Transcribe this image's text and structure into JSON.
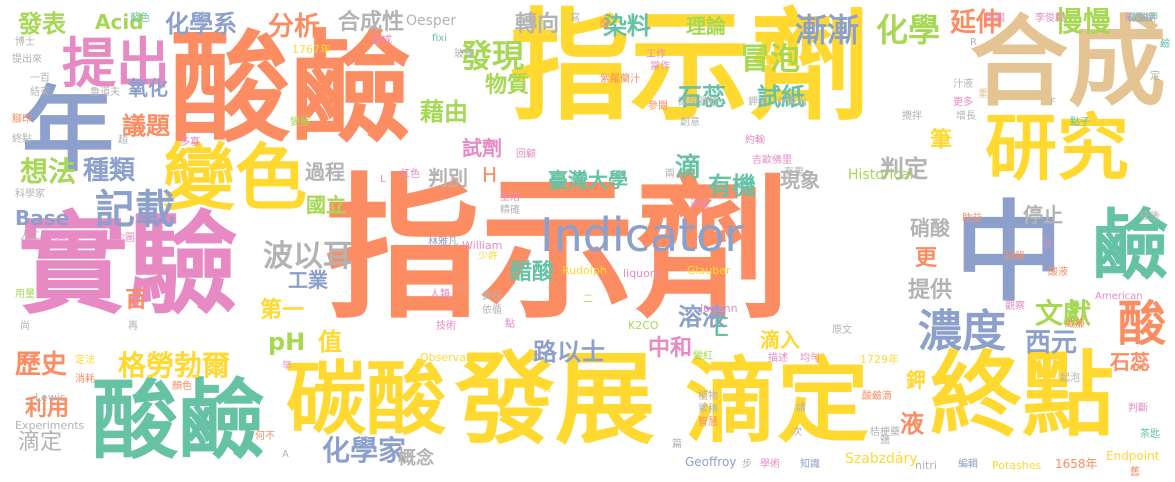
{
  "words": [
    {
      "text": "指示劑",
      "color": "#fc8d62"
    },
    {
      "text": "指示劑",
      "color": "#ffd92f"
    },
    {
      "text": "酸鹼",
      "color": "#fc8d62"
    },
    {
      "text": "實驗",
      "color": "#e78ac3"
    },
    {
      "text": "合成",
      "color": "#e5c494"
    },
    {
      "text": "發展",
      "color": "#ffd92f"
    },
    {
      "text": "滴定",
      "color": "#ffd92f"
    },
    {
      "text": "終點",
      "color": "#ffd92f"
    },
    {
      "text": "中",
      "color": "#8da0cb"
    },
    {
      "text": "碳酸",
      "color": "#ffd92f"
    },
    {
      "text": "酸鹼",
      "color": "#66c2a5"
    },
    {
      "text": "年",
      "color": "#8da0cb"
    },
    {
      "text": "研究",
      "color": "#ffd92f"
    },
    {
      "text": "變色",
      "color": "#ffd92f"
    },
    {
      "text": "提出",
      "color": "#e78ac3"
    },
    {
      "text": "鹼",
      "color": "#66c2a5"
    },
    {
      "text": "Indicator",
      "color": "#8da0cb"
    },
    {
      "text": "濃度",
      "color": "#8da0cb"
    },
    {
      "text": "記載",
      "color": "#8da0cb"
    },
    {
      "text": "化學家",
      "color": "#8da0cb"
    },
    {
      "text": "格勞勃爾",
      "color": "#ffd92f"
    },
    {
      "text": "波以耳",
      "color": "#b3b3b3"
    },
    {
      "text": "酸",
      "color": "#fc8d62"
    },
    {
      "text": "文獻",
      "color": "#a6d854"
    },
    {
      "text": "石蕊",
      "color": "#66c2a5"
    },
    {
      "text": "試紙",
      "color": "#66c2a5"
    },
    {
      "text": "冒泡",
      "color": "#a6d854"
    },
    {
      "text": "化學",
      "color": "#a6d854"
    },
    {
      "text": "漸漸",
      "color": "#8da0cb"
    },
    {
      "text": "發現",
      "color": "#a6d854"
    },
    {
      "text": "分析",
      "color": "#fc8d62"
    },
    {
      "text": "想法",
      "color": "#a6d854"
    },
    {
      "text": "種類",
      "color": "#8da0cb"
    },
    {
      "text": "議題",
      "color": "#fc8d62"
    },
    {
      "text": "慢慢",
      "color": "#a6d854"
    },
    {
      "text": "延伸",
      "color": "#fc8d62"
    },
    {
      "text": "理論",
      "color": "#a6d854"
    },
    {
      "text": "染料",
      "color": "#66c2a5"
    },
    {
      "text": "轉向",
      "color": "#b3b3b3"
    },
    {
      "text": "合成性",
      "color": "#b3b3b3"
    },
    {
      "text": "化學系",
      "color": "#8da0cb"
    },
    {
      "text": "發表",
      "color": "#a6d854"
    },
    {
      "text": "Acid",
      "color": "#a6d854"
    },
    {
      "text": "Base",
      "color": "#8da0cb"
    },
    {
      "text": "歷史",
      "color": "#fc8d62"
    },
    {
      "text": "利用",
      "color": "#fc8d62"
    },
    {
      "text": "滴定",
      "color": "#b3b3b3"
    },
    {
      "text": "藉由",
      "color": "#a6d854"
    },
    {
      "text": "試劑",
      "color": "#e78ac3"
    },
    {
      "text": "物質",
      "color": "#a6d854"
    },
    {
      "text": "過程",
      "color": "#b3b3b3"
    },
    {
      "text": "判別",
      "color": "#b3b3b3"
    },
    {
      "text": "國立",
      "color": "#a6d854"
    },
    {
      "text": "臺灣大學",
      "color": "#66c2a5"
    },
    {
      "text": "有機",
      "color": "#66c2a5"
    },
    {
      "text": "現象",
      "color": "#b3b3b3"
    },
    {
      "text": "判定",
      "color": "#b3b3b3"
    },
    {
      "text": "停止",
      "color": "#b3b3b3"
    },
    {
      "text": "硝酸",
      "color": "#b3b3b3"
    },
    {
      "text": "筆",
      "color": "#ffd92f"
    },
    {
      "text": "更",
      "color": "#fc8d62"
    },
    {
      "text": "提供",
      "color": "#b3b3b3"
    },
    {
      "text": "西元",
      "color": "#8da0cb"
    },
    {
      "text": "石蕊",
      "color": "#fc8d62"
    },
    {
      "text": "醋酸",
      "color": "#66c2a5"
    },
    {
      "text": "溶液",
      "color": "#8da0cb"
    },
    {
      "text": "滴",
      "color": "#66c2a5"
    },
    {
      "text": "中和",
      "color": "#e78ac3"
    },
    {
      "text": "路以士",
      "color": "#8da0cb"
    },
    {
      "text": "第一",
      "color": "#ffd92f"
    },
    {
      "text": "工業",
      "color": "#8da0cb"
    },
    {
      "text": "pH",
      "color": "#a6d854"
    },
    {
      "text": "值",
      "color": "#ffd92f"
    },
    {
      "text": "E",
      "color": "#66c2a5"
    },
    {
      "text": "滴入",
      "color": "#ffd92f"
    },
    {
      "text": "鉀",
      "color": "#ffd92f"
    },
    {
      "text": "液",
      "color": "#fc8d62"
    },
    {
      "text": "概念",
      "color": "#b3b3b3"
    },
    {
      "text": "H",
      "color": "#fc8d62"
    },
    {
      "text": "百",
      "color": "#fc8d62"
    },
    {
      "text": "氧化",
      "color": "#8da0cb"
    },
    {
      "text": "Oesper",
      "color": "#b3b3b3"
    },
    {
      "text": "William",
      "color": "#e78ac3"
    },
    {
      "text": "Lewis",
      "color": "#b3b3b3"
    },
    {
      "text": "Rudolph",
      "color": "#ffd92f"
    },
    {
      "text": "liquore",
      "color": "#e78ac3"
    },
    {
      "text": "Glauber",
      "color": "#ffd92f"
    },
    {
      "text": "Johann",
      "color": "#e78ac3"
    },
    {
      "text": "K2CO",
      "color": "#a6d854"
    },
    {
      "text": "Observations",
      "color": "#ffd92f"
    },
    {
      "text": "Historical",
      "color": "#a6d854"
    },
    {
      "text": "Experiments",
      "color": "#b3b3b3"
    },
    {
      "text": "Geoffroy",
      "color": "#8da0cb"
    },
    {
      "text": "Szabzdáry",
      "color": "#ffd92f"
    },
    {
      "text": "nitri",
      "color": "#b3b3b3"
    },
    {
      "text": "Potashes",
      "color": "#ffd92f"
    },
    {
      "text": "1658年",
      "color": "#fc8d62"
    },
    {
      "text": "Endpoint",
      "color": "#ffd92f"
    },
    {
      "text": "American",
      "color": "#e78ac3"
    },
    {
      "text": "1767年",
      "color": "#ffd92f"
    },
    {
      "text": "1729年",
      "color": "#ffd92f"
    },
    {
      "text": "博士",
      "color": "#b3b3b3"
    },
    {
      "text": "提出來",
      "color": "#b3b3b3"
    },
    {
      "text": "一百",
      "color": "#b3b3b3"
    },
    {
      "text": "結束",
      "color": "#b3b3b3"
    },
    {
      "text": "腳印",
      "color": "#fc8d62"
    },
    {
      "text": "終點",
      "color": "#b3b3b3"
    },
    {
      "text": "科學家",
      "color": "#b3b3b3"
    },
    {
      "text": "人工",
      "color": "#b3b3b3"
    },
    {
      "text": "改變",
      "color": "#e78ac3"
    },
    {
      "text": "用量",
      "color": "#a6d854"
    },
    {
      "text": "定法",
      "color": "#ffd92f"
    },
    {
      "text": "消耗",
      "color": "#fc8d62"
    },
    {
      "text": "顏色",
      "color": "#fc8d62"
    },
    {
      "text": "何不",
      "color": "#fc8d62"
    },
    {
      "text": "藍色",
      "color": "#66c2a5"
    },
    {
      "text": "魯道夫",
      "color": "#b3b3b3"
    },
    {
      "text": "製成",
      "color": "#e78ac3"
    },
    {
      "text": "fixi",
      "color": "#66c2a5"
    },
    {
      "text": "玻棒",
      "color": "#b3b3b3"
    },
    {
      "text": "紫羅蘭汁",
      "color": "#fc8d62"
    },
    {
      "text": "工作",
      "color": "#e78ac3"
    },
    {
      "text": "當作",
      "color": "#e78ac3"
    },
    {
      "text": "參閱",
      "color": "#fc8d62"
    },
    {
      "text": "碳酸鹽類",
      "color": "#b3b3b3"
    },
    {
      "text": "鉀鴻",
      "color": "#b3b3b3"
    },
    {
      "text": "計算出",
      "color": "#b3b3b3"
    },
    {
      "text": "汁液",
      "color": "#b3b3b3"
    },
    {
      "text": "更多",
      "color": "#e78ac3"
    },
    {
      "text": "重量",
      "color": "#e5c494"
    },
    {
      "text": "碳酸鉀",
      "color": "#e78ac3"
    },
    {
      "text": "李俊毅",
      "color": "#e78ac3"
    },
    {
      "text": "美國",
      "color": "#e78ac3"
    },
    {
      "text": "增長",
      "color": "#b3b3b3"
    },
    {
      "text": "點子",
      "color": "#66c2a5"
    },
    {
      "text": "變藍",
      "color": "#a6d854"
    },
    {
      "text": "多寡",
      "color": "#e78ac3"
    },
    {
      "text": "創意",
      "color": "#b3b3b3"
    },
    {
      "text": "約輸",
      "color": "#e78ac3"
    },
    {
      "text": "攪拌",
      "color": "#b3b3b3"
    },
    {
      "text": "吉歐佛里",
      "color": "#e78ac3"
    },
    {
      "text": "有果",
      "color": "#b3b3b3"
    },
    {
      "text": "紅色",
      "color": "#e78ac3"
    },
    {
      "text": "回顧",
      "color": "#e78ac3"
    },
    {
      "text": "生活",
      "color": "#e78ac3"
    },
    {
      "text": "精確",
      "color": "#b3b3b3"
    },
    {
      "text": "過量",
      "color": "#e78ac3"
    },
    {
      "text": "企圖心",
      "color": "#e78ac3"
    },
    {
      "text": "林雅凡",
      "color": "#8da0cb"
    },
    {
      "text": "少許",
      "color": "#ffd92f"
    },
    {
      "text": "人類",
      "color": "#e78ac3"
    },
    {
      "text": "責任",
      "color": "#b3b3b3"
    },
    {
      "text": "依循",
      "color": "#b3b3b3"
    },
    {
      "text": "技術",
      "color": "#e78ac3"
    },
    {
      "text": "點",
      "color": "#e78ac3"
    },
    {
      "text": "變紅",
      "color": "#a6d854"
    },
    {
      "text": "描述",
      "color": "#e78ac3"
    },
    {
      "text": "均勻",
      "color": "#e78ac3"
    },
    {
      "text": "原文",
      "color": "#b3b3b3"
    },
    {
      "text": "威廉",
      "color": "#fc8d62"
    },
    {
      "text": "記錄",
      "color": "#fc8d62"
    },
    {
      "text": "酸液",
      "color": "#fc8d62"
    },
    {
      "text": "助益",
      "color": "#fc8d62"
    },
    {
      "text": "起泡",
      "color": "#b3b3b3"
    },
    {
      "text": "觀察",
      "color": "#e78ac3"
    },
    {
      "text": "植物",
      "color": "#b3b3b3"
    },
    {
      "text": "酸鹼滴",
      "color": "#fc8d62"
    },
    {
      "text": "累積",
      "color": "#b3b3b3"
    },
    {
      "text": "智慧",
      "color": "#fc8d62"
    },
    {
      "text": "學術",
      "color": "#e78ac3"
    },
    {
      "text": "知識",
      "color": "#8da0cb"
    },
    {
      "text": "編輯",
      "color": "#8da0cb"
    },
    {
      "text": "桔梗藥",
      "color": "#b3b3b3"
    },
    {
      "text": "判斷",
      "color": "#e78ac3"
    },
    {
      "text": "茶匙",
      "color": "#66c2a5"
    },
    {
      "text": "往後",
      "color": "#b3b3b3"
    },
    {
      "text": "碳酸鉀",
      "color": "#66c2a5"
    },
    {
      "text": "定",
      "color": "#b3b3b3"
    },
    {
      "text": "R",
      "color": "#b3b3b3"
    },
    {
      "text": "F",
      "color": "#b3b3b3"
    },
    {
      "text": "L",
      "color": "#e78ac3"
    },
    {
      "text": "A",
      "color": "#b3b3b3"
    },
    {
      "text": "C",
      "color": "#b3b3b3"
    },
    {
      "text": "尚",
      "color": "#b3b3b3"
    },
    {
      "text": "超",
      "color": "#b3b3b3"
    },
    {
      "text": "再",
      "color": "#b3b3b3"
    },
    {
      "text": "早",
      "color": "#e78ac3"
    },
    {
      "text": "皆",
      "color": "#ffd92f"
    },
    {
      "text": "篇",
      "color": "#b3b3b3"
    },
    {
      "text": "步",
      "color": "#b3b3b3"
    },
    {
      "text": "次",
      "color": "#b3b3b3"
    },
    {
      "text": "請",
      "color": "#b3b3b3"
    },
    {
      "text": "鹽",
      "color": "#b3b3b3"
    },
    {
      "text": "寫",
      "color": "#b3b3b3"
    },
    {
      "text": "兩",
      "color": "#b3b3b3"
    },
    {
      "text": "舊",
      "color": "#fc8d62"
    },
    {
      "text": "沾",
      "color": "#e78ac3"
    },
    {
      "text": "二",
      "color": "#a6d854"
    },
    {
      "text": "酸",
      "color": "#fc8d62"
    },
    {
      "text": "鹼",
      "color": "#66c2a5"
    }
  ]
}
